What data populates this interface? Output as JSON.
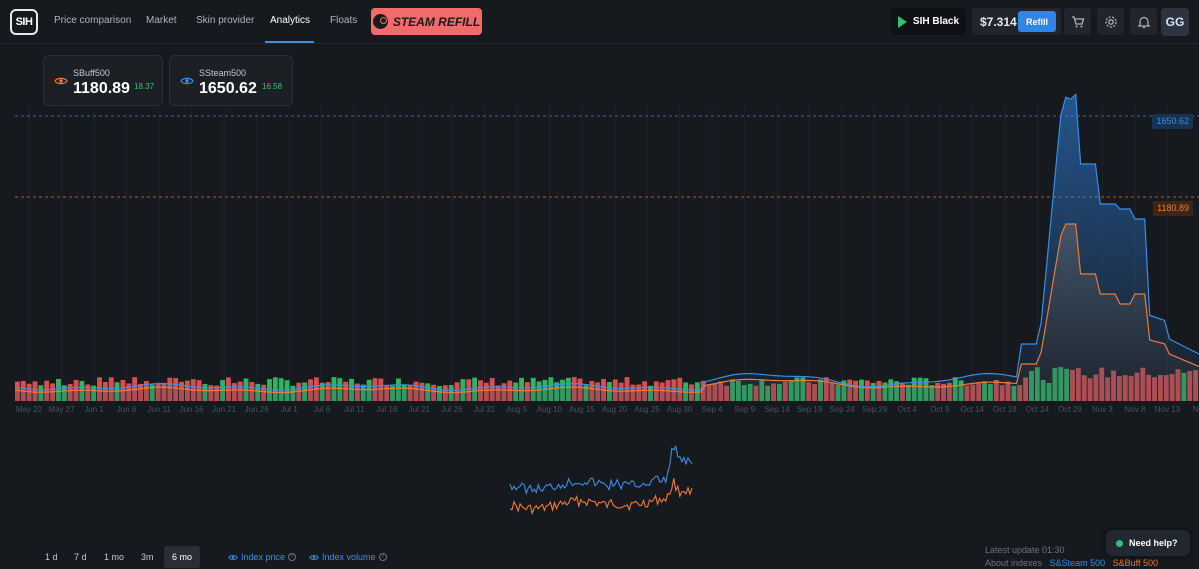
{
  "nav": {
    "logo": "SIH",
    "items": [
      "Price comparison",
      "Market",
      "Skin provider",
      "Analytics",
      "Floats"
    ],
    "active": "Analytics",
    "promo": "STEAM REFILL"
  },
  "header": {
    "sih_black": "SIH Black",
    "balance": "$7.314",
    "refill": "Refill",
    "avatar": "GG"
  },
  "cards": [
    {
      "name": "SBuff500",
      "value": "1180.89",
      "change": "18.37",
      "color": "#ee7a36"
    },
    {
      "name": "SSteam500",
      "value": "1650.62",
      "change": "16.58",
      "color": "#3a8ee6"
    }
  ],
  "chart_data": {
    "type": "line",
    "x_labels": [
      "May 22",
      "May 27",
      "Jun 1",
      "Jun 6",
      "Jun 11",
      "Jun 16",
      "Jun 21",
      "Jun 26",
      "Jul 1",
      "Jul 6",
      "Jul 11",
      "Jul 16",
      "Jul 21",
      "Jul 26",
      "Jul 31",
      "Aug 5",
      "Aug 10",
      "Aug 15",
      "Aug 20",
      "Aug 25",
      "Aug 30",
      "Sep 4",
      "Sep 9",
      "Sep 14",
      "Sep 19",
      "Sep 24",
      "Sep 29",
      "Oct 4",
      "Oct 9",
      "Oct 14",
      "Oct 19",
      "Oct 24",
      "Oct 29",
      "Nov 3",
      "Nov 8",
      "Nov 13",
      "Nov"
    ],
    "series": [
      {
        "name": "S&Steam 500",
        "color": "#3a8ee6",
        "last_label": "1650.62"
      },
      {
        "name": "S&Buff 500",
        "color": "#ee7a36",
        "last_label": "1180.89"
      }
    ],
    "price_labels": {
      "steam": "1650.62",
      "buff": "1180.89"
    }
  },
  "ranges": [
    "1 d",
    "7 d",
    "1 mo",
    "3m",
    "6 mo"
  ],
  "active_range": "6 mo",
  "toggles": {
    "price": "Index price",
    "volume": "Index volume"
  },
  "footer": {
    "latest": "Latest update 01:30",
    "about": "About indexes",
    "steam": "S&Steam 500",
    "buff": "S&Buff 500"
  },
  "help": "Need help?"
}
